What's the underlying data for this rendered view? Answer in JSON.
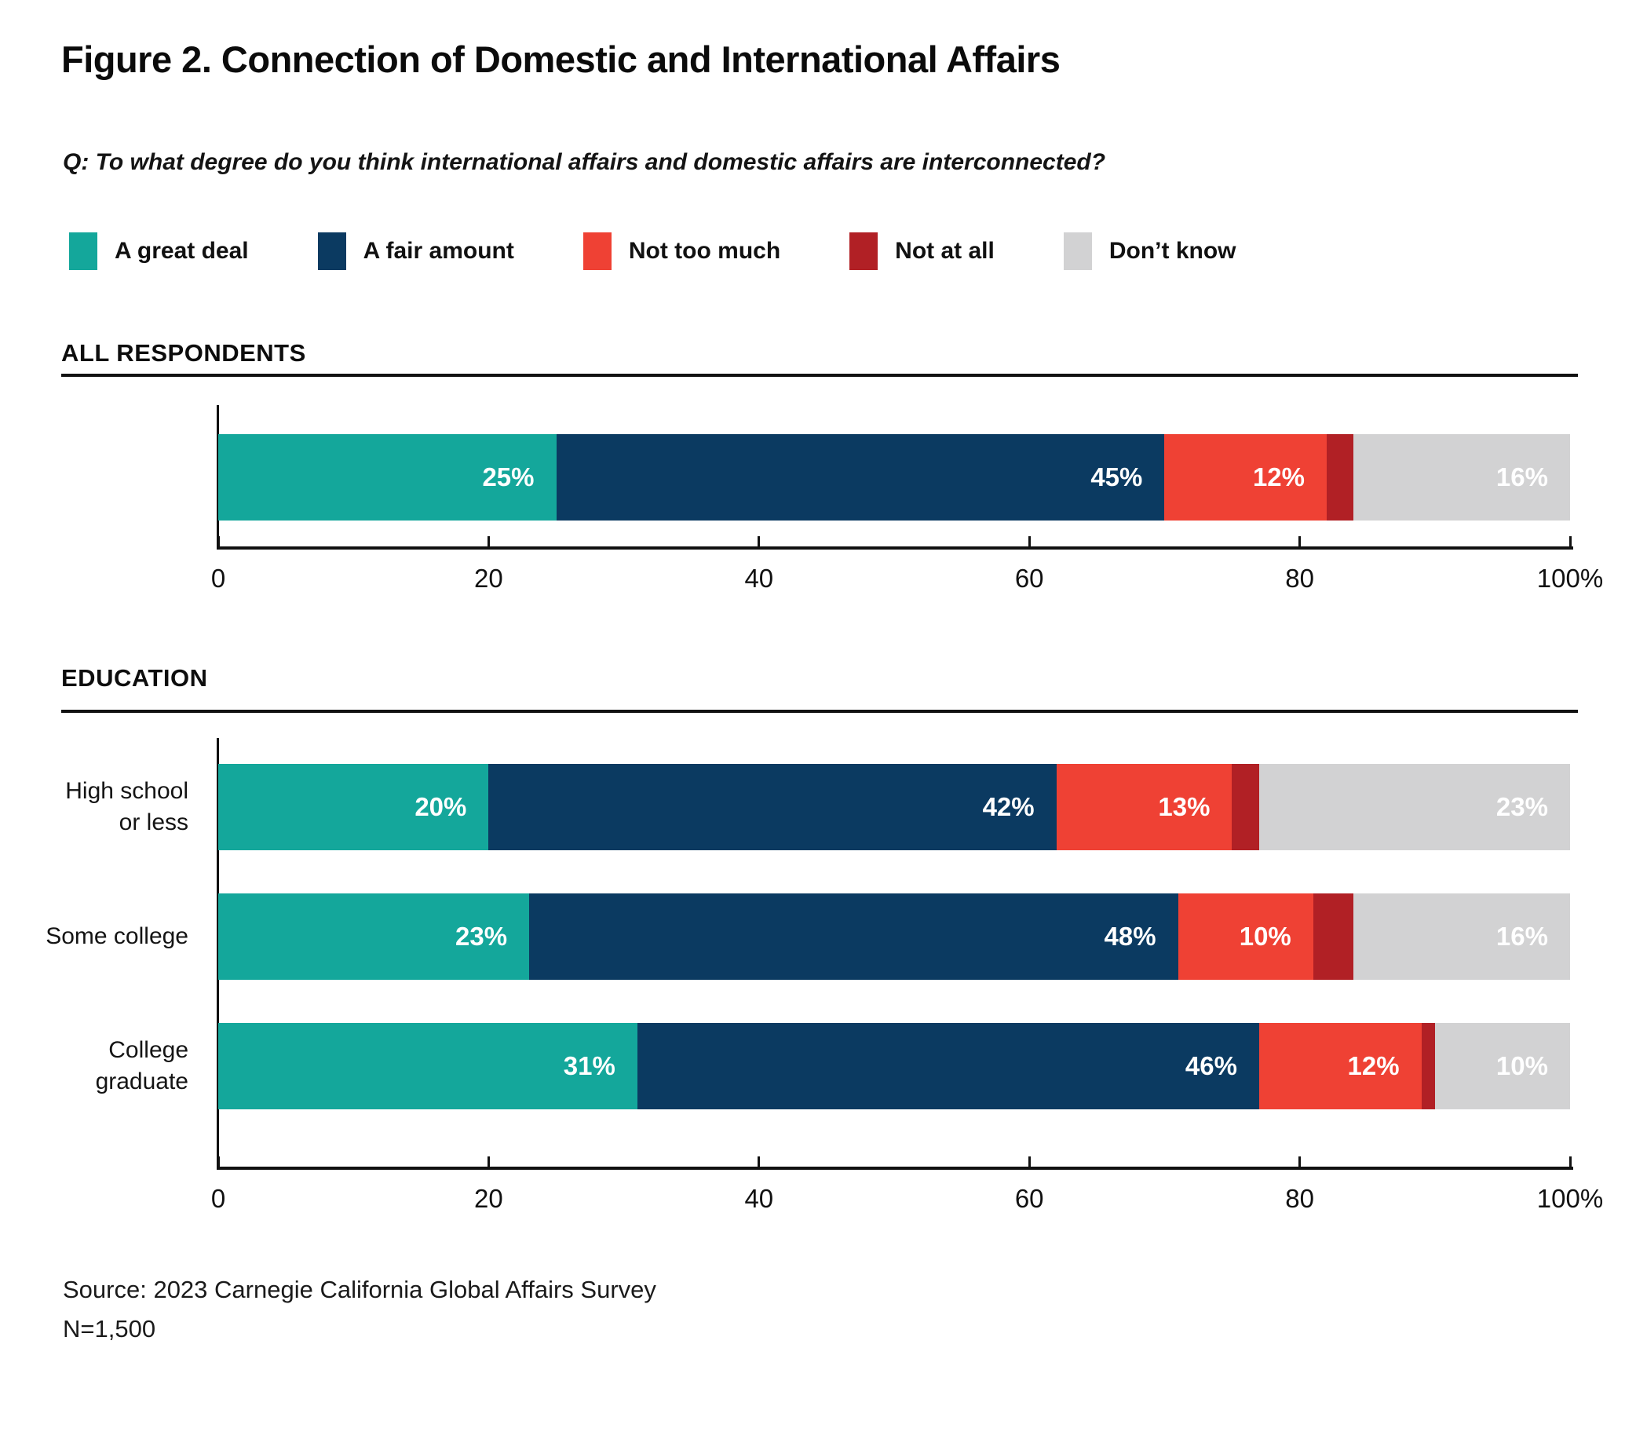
{
  "figure": {
    "title": "Figure 2. Connection of Domestic and International Affairs",
    "question": "Q: To what degree do you think international affairs and domestic affairs are interconnected?",
    "source_line1": "Source: 2023 Carnegie California Global Affairs Survey",
    "source_line2": "N=1,500"
  },
  "legend": [
    {
      "label": "A great deal",
      "color": "#14A79B"
    },
    {
      "label": "A fair amount",
      "color": "#0B3A61"
    },
    {
      "label": "Not too much",
      "color": "#EF4134"
    },
    {
      "label": "Not at all",
      "color": "#B12025"
    },
    {
      "label": "Don’t know",
      "color": "#D2D2D3"
    }
  ],
  "chart_data": {
    "type": "bar",
    "orientation": "horizontal-stacked",
    "xlim": [
      0,
      100
    ],
    "x_ticks": [
      0,
      20,
      40,
      60,
      80,
      100
    ],
    "x_tick_labels": [
      "0",
      "20",
      "40",
      "60",
      "80",
      "100%"
    ],
    "grid": false,
    "legend_position": "top",
    "series_names": [
      "A great deal",
      "A fair amount",
      "Not too much",
      "Not at all",
      "Don’t know"
    ],
    "series_colors": [
      "#14A79B",
      "#0B3A61",
      "#EF4134",
      "#B12025",
      "#D2D2D3"
    ],
    "groups": [
      {
        "section": "ALL RESPONDENTS",
        "rows": [
          {
            "category": "",
            "values": [
              25,
              45,
              12,
              2,
              16
            ],
            "labels": [
              "25%",
              "45%",
              "12%",
              "",
              "16%"
            ]
          }
        ]
      },
      {
        "section": "EDUCATION",
        "rows": [
          {
            "category": "High school\nor less",
            "values": [
              20,
              42,
              13,
              2,
              23
            ],
            "labels": [
              "20%",
              "42%",
              "13%",
              "",
              "23%"
            ]
          },
          {
            "category": "Some college",
            "values": [
              23,
              48,
              10,
              3,
              16
            ],
            "labels": [
              "23%",
              "48%",
              "10%",
              "",
              "16%"
            ]
          },
          {
            "category": "College\ngraduate",
            "values": [
              31,
              46,
              12,
              1,
              10
            ],
            "labels": [
              "31%",
              "46%",
              "12%",
              "",
              "10%"
            ]
          }
        ]
      }
    ]
  }
}
